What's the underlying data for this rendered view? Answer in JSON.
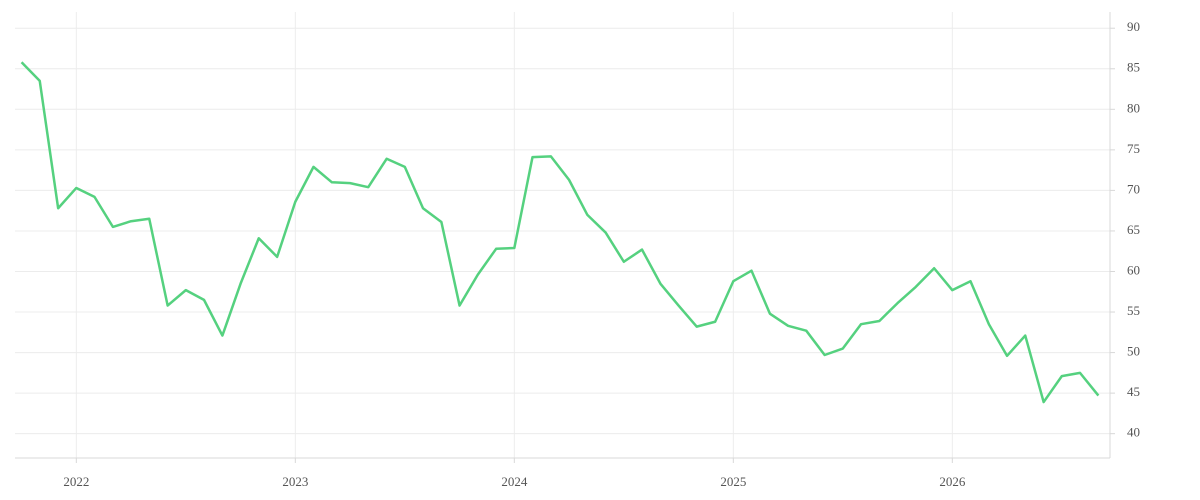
{
  "chart_data": {
    "type": "line",
    "x": [
      2021.75,
      2021.833,
      2021.917,
      2022,
      2022.083,
      2022.167,
      2022.25,
      2022.333,
      2022.417,
      2022.5,
      2022.583,
      2022.667,
      2022.75,
      2022.833,
      2022.917,
      2023,
      2023.083,
      2023.167,
      2023.25,
      2023.333,
      2023.417,
      2023.5,
      2023.583,
      2023.667,
      2023.75,
      2023.833,
      2023.917,
      2024,
      2024.083,
      2024.167,
      2024.25,
      2024.333,
      2024.417,
      2024.5,
      2024.583,
      2024.667,
      2024.75,
      2024.833,
      2024.917,
      2025,
      2025.083,
      2025.167,
      2025.25,
      2025.333,
      2025.417,
      2025.5,
      2025.583,
      2025.667,
      2025.75,
      2025.833,
      2025.917,
      2026,
      2026.083,
      2026.167,
      2026.25,
      2026.333,
      2026.417,
      2026.5,
      2026.583,
      2026.667
    ],
    "values": [
      85.8,
      83.5,
      67.8,
      70.3,
      69.2,
      65.5,
      66.2,
      66.5,
      55.8,
      57.7,
      56.5,
      52.1,
      58.5,
      64.1,
      61.8,
      68.6,
      72.9,
      71.0,
      70.9,
      70.4,
      73.9,
      72.9,
      67.8,
      66.1,
      55.8,
      59.6,
      62.8,
      62.9,
      74.1,
      74.2,
      71.3,
      67.0,
      64.8,
      61.2,
      62.7,
      58.5,
      55.8,
      53.2,
      53.8,
      58.8,
      60.1,
      54.8,
      53.3,
      52.7,
      49.7,
      50.5,
      53.5,
      53.9,
      56.1,
      58.1,
      60.4,
      57.7,
      58.8,
      53.5,
      49.6,
      52.1,
      43.9,
      47.1,
      47.5,
      44.7
    ],
    "color": "#55d17f",
    "xlim": [
      2021.72,
      2026.72
    ],
    "xticks": [
      2022,
      2023,
      2024,
      2025,
      2026
    ],
    "ylim": [
      37,
      92
    ],
    "yticks": [
      40,
      45,
      50,
      55,
      60,
      65,
      70,
      75,
      80,
      85,
      90
    ],
    "grid": true
  }
}
